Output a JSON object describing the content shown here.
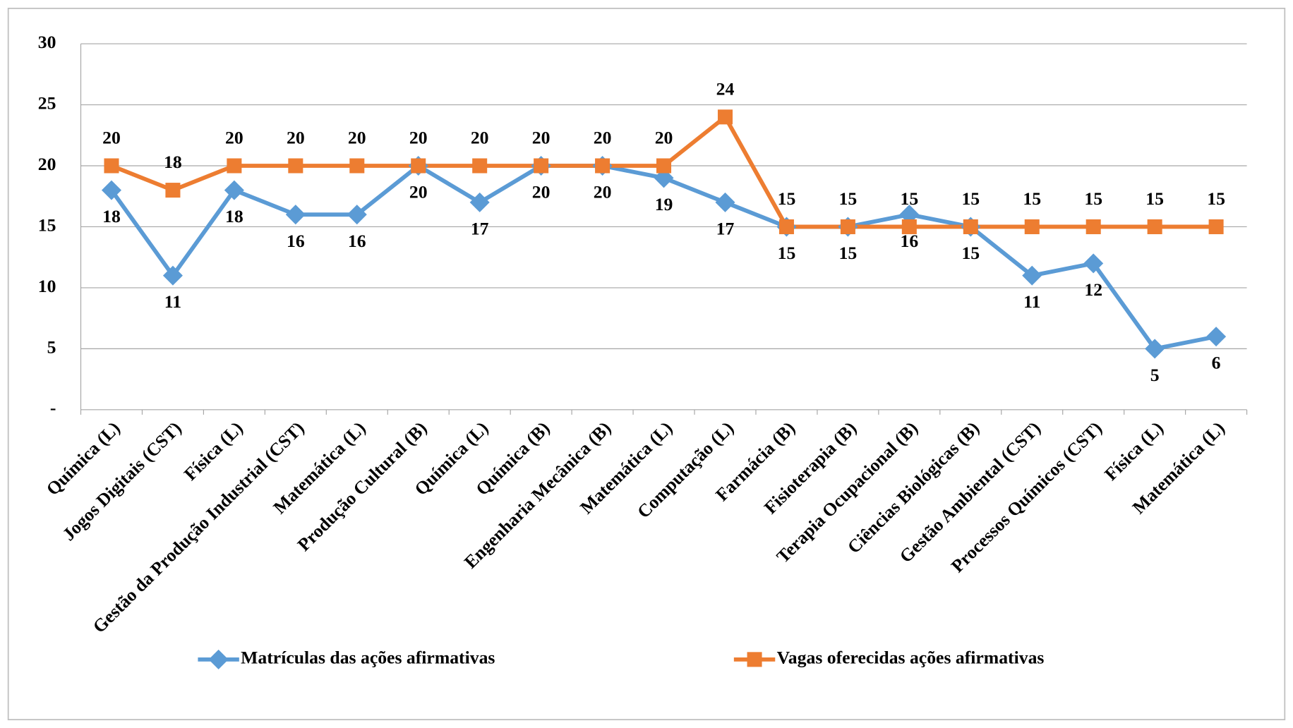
{
  "chart_data": {
    "type": "line",
    "categories": [
      "Química (L)",
      "Jogos Digitais (CST)",
      "Física (L)",
      "Gestão da Produção Industrial (CST)",
      "Matemática (L)",
      "Produção Cultural (B)",
      "Química (L)",
      "Química (B)",
      "Engenharia Mecânica (B)",
      "Matemática (L)",
      "Computação (L)",
      "Farmácia (B)",
      "Fisioterapia (B)",
      "Terapia Ocupacional (B)",
      "Ciências Biológicas (B)",
      "Gestão Ambiental (CST)",
      "Processos Químicos (CST)",
      "Física (L)",
      "Matemática (L)"
    ],
    "series": [
      {
        "name": "Matrículas das ações afirmativas",
        "color": "#5b9bd5",
        "marker": "diamond",
        "values": [
          18,
          11,
          18,
          16,
          16,
          20,
          17,
          20,
          20,
          19,
          17,
          15,
          15,
          16,
          15,
          11,
          12,
          5,
          6
        ]
      },
      {
        "name": "Vagas oferecidas ações afirmativas",
        "color": "#ed7d31",
        "marker": "square",
        "values": [
          20,
          18,
          20,
          20,
          20,
          20,
          20,
          20,
          20,
          20,
          24,
          15,
          15,
          15,
          15,
          15,
          15,
          15,
          15
        ]
      }
    ],
    "ylim": [
      0,
      30
    ],
    "yticks": [
      {
        "value": 0,
        "label": "-"
      },
      5,
      10,
      15,
      20,
      25,
      30
    ],
    "grid": true,
    "legend": "bottom"
  }
}
